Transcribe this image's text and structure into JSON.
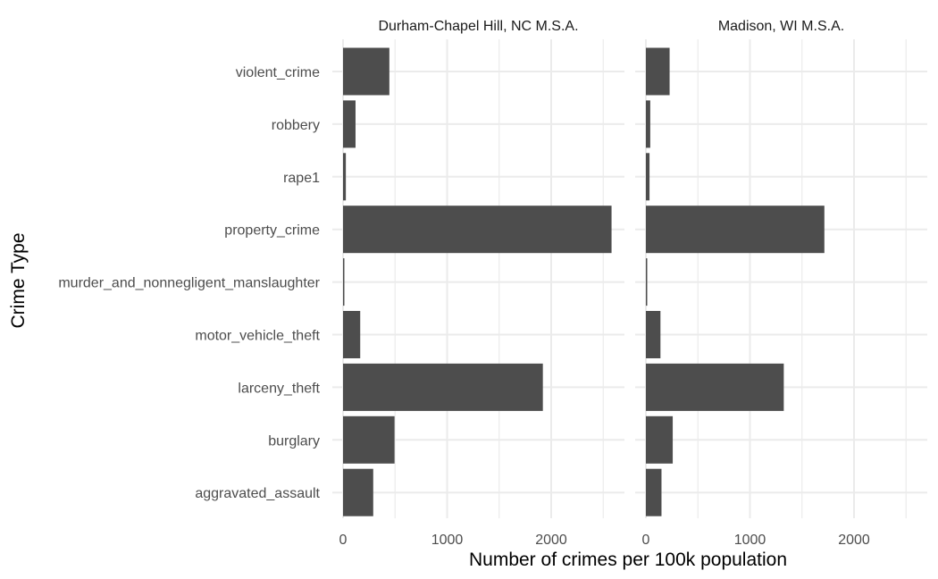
{
  "chart_data": {
    "type": "bar",
    "orientation": "horizontal",
    "xlabel": "Number of crimes per 100k population",
    "ylabel": "Crime Type",
    "xlim": [
      0,
      2700
    ],
    "xticks": [
      0,
      1000,
      2000
    ],
    "grid": true,
    "categories": [
      "violent_crime",
      "robbery",
      "rape1",
      "property_crime",
      "murder_and_nonnegligent_manslaughter",
      "motor_vehicle_theft",
      "larceny_theft",
      "burglary",
      "aggravated_assault"
    ],
    "panels": [
      {
        "title": "Durham-Chapel Hill, NC M.S.A.",
        "values": [
          445,
          120,
          27,
          2580,
          6,
          165,
          1920,
          495,
          290
        ]
      },
      {
        "title": "Madison, WI M.S.A.",
        "values": [
          228,
          42,
          35,
          1715,
          2,
          140,
          1325,
          258,
          150
        ]
      }
    ],
    "bar_color": "#4d4d4d",
    "grid_color": "#ebebeb"
  }
}
